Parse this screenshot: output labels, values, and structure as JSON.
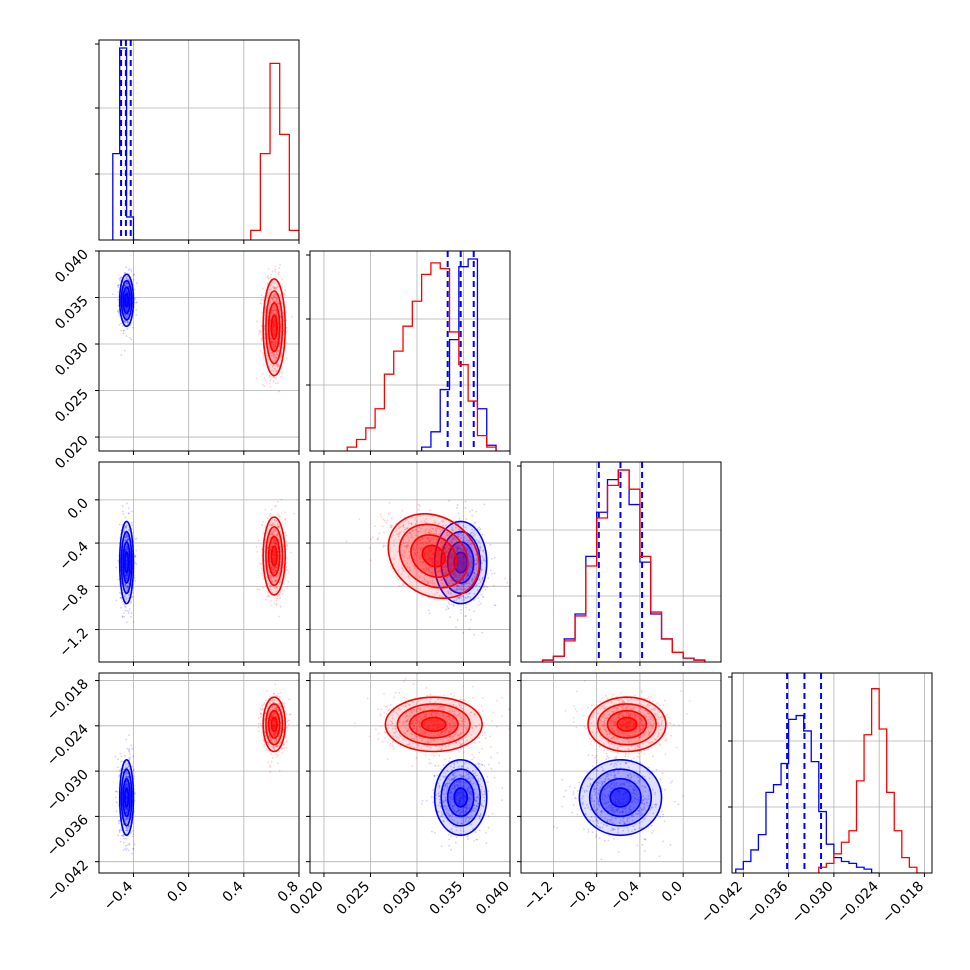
{
  "colors": {
    "series_a": "#0000ff",
    "series_b": "#ff0000",
    "grid": "#b0b0b0"
  },
  "chart_data": {
    "type": "corner",
    "parameters": 4,
    "grid": true,
    "ranges": [
      [
        -0.65,
        0.8
      ],
      [
        0.0185,
        0.04
      ],
      [
        -1.5,
        0.35
      ],
      [
        -0.0435,
        -0.017
      ]
    ],
    "tick_labels": [
      [
        "−0.4",
        "0.0",
        "0.4",
        "0.8"
      ],
      [
        "0.020",
        "0.025",
        "0.030",
        "0.035",
        "0.040"
      ],
      [
        "−1.2",
        "−0.8",
        "−0.4",
        "0.0"
      ],
      [
        "−0.042",
        "−0.036",
        "−0.030",
        "−0.024",
        "−0.018"
      ]
    ],
    "tick_values": [
      [
        -0.4,
        0.0,
        0.4,
        0.8
      ],
      [
        0.02,
        0.025,
        0.03,
        0.035,
        0.04
      ],
      [
        -1.2,
        -0.8,
        -0.4,
        0.0
      ],
      [
        -0.042,
        -0.036,
        -0.03,
        -0.024,
        -0.018
      ]
    ],
    "series": [
      {
        "color": "#0000ff",
        "means": [
          -0.45,
          0.0347,
          -0.58,
          -0.0335
        ],
        "sigmas": [
          0.025,
          0.0014,
          0.19,
          0.0025
        ],
        "quantiles": [
          [
            -0.49,
            -0.455,
            -0.42
          ],
          [
            0.0333,
            0.0347,
            0.0361
          ],
          [
            -0.78,
            -0.58,
            -0.38
          ],
          [
            -0.0362,
            -0.0339,
            -0.0317
          ]
        ],
        "hist_edges": [
          [
            -0.55,
            -0.5,
            -0.45,
            -0.4,
            -0.35
          ],
          [
            0.0305,
            0.0315,
            0.0325,
            0.0335,
            0.0345,
            0.0355,
            0.0365,
            0.0375,
            0.0385
          ],
          [
            -1.3,
            -1.2,
            -1.1,
            -1.0,
            -0.9,
            -0.8,
            -0.7,
            -0.6,
            -0.5,
            -0.4,
            -0.3,
            -0.2,
            -0.1,
            0.0,
            0.1,
            0.2
          ],
          [
            -0.043,
            -0.042,
            -0.041,
            -0.04,
            -0.039,
            -0.038,
            -0.037,
            -0.036,
            -0.035,
            -0.034,
            -0.033,
            -0.032,
            -0.031,
            -0.03,
            -0.029,
            -0.028,
            -0.027,
            -0.026,
            -0.025,
            -0.024
          ]
        ],
        "hist_heights": [
          [
            0.45,
            1.0,
            0.12,
            0.0
          ],
          [
            0.02,
            0.1,
            0.32,
            0.58,
            0.96,
            1.0,
            0.22,
            0.03
          ],
          [
            0.01,
            0.03,
            0.12,
            0.25,
            0.55,
            0.78,
            0.95,
            1.0,
            0.82,
            0.52,
            0.25,
            0.12,
            0.05,
            0.02,
            0.01
          ],
          [
            0.02,
            0.06,
            0.12,
            0.2,
            0.42,
            0.46,
            0.57,
            0.8,
            0.82,
            0.74,
            0.58,
            0.32,
            0.15,
            0.08,
            0.06,
            0.05,
            0.03,
            0.02,
            0.0
          ]
        ]
      },
      {
        "color": "#ff0000",
        "means": [
          0.62,
          0.0318,
          -0.52,
          -0.0238
        ],
        "sigmas": [
          0.04,
          0.0026,
          0.18,
          0.0018
        ],
        "quantiles": null,
        "hist_edges": [
          [
            0.45,
            0.52,
            0.59,
            0.66,
            0.73,
            0.8
          ],
          [
            0.0225,
            0.0235,
            0.0245,
            0.0255,
            0.0265,
            0.0275,
            0.0285,
            0.0295,
            0.0305,
            0.0315,
            0.0325,
            0.0335,
            0.0345,
            0.0355,
            0.0365,
            0.0375,
            0.0385
          ],
          [
            -1.3,
            -1.2,
            -1.1,
            -1.0,
            -0.9,
            -0.8,
            -0.7,
            -0.6,
            -0.5,
            -0.4,
            -0.3,
            -0.2,
            -0.1,
            0.0,
            0.1,
            0.2
          ],
          [
            -0.032,
            -0.031,
            -0.03,
            -0.029,
            -0.028,
            -0.027,
            -0.026,
            -0.025,
            -0.024,
            -0.023,
            -0.022,
            -0.021,
            -0.02,
            -0.019,
            -0.018
          ]
        ],
        "hist_heights": [
          [
            0.05,
            0.45,
            0.92,
            0.55,
            0.05
          ],
          [
            0.02,
            0.06,
            0.12,
            0.22,
            0.4,
            0.52,
            0.65,
            0.78,
            0.92,
            0.98,
            0.95,
            0.62,
            0.45,
            0.26,
            0.08,
            0.02
          ],
          [
            0.01,
            0.03,
            0.11,
            0.24,
            0.5,
            0.75,
            0.92,
            1.0,
            0.9,
            0.55,
            0.26,
            0.12,
            0.05,
            0.02,
            0.01
          ],
          [
            0.03,
            0.05,
            0.1,
            0.16,
            0.22,
            0.48,
            0.72,
            0.96,
            0.75,
            0.42,
            0.22,
            0.08,
            0.03,
            0.0
          ]
        ]
      }
    ]
  }
}
